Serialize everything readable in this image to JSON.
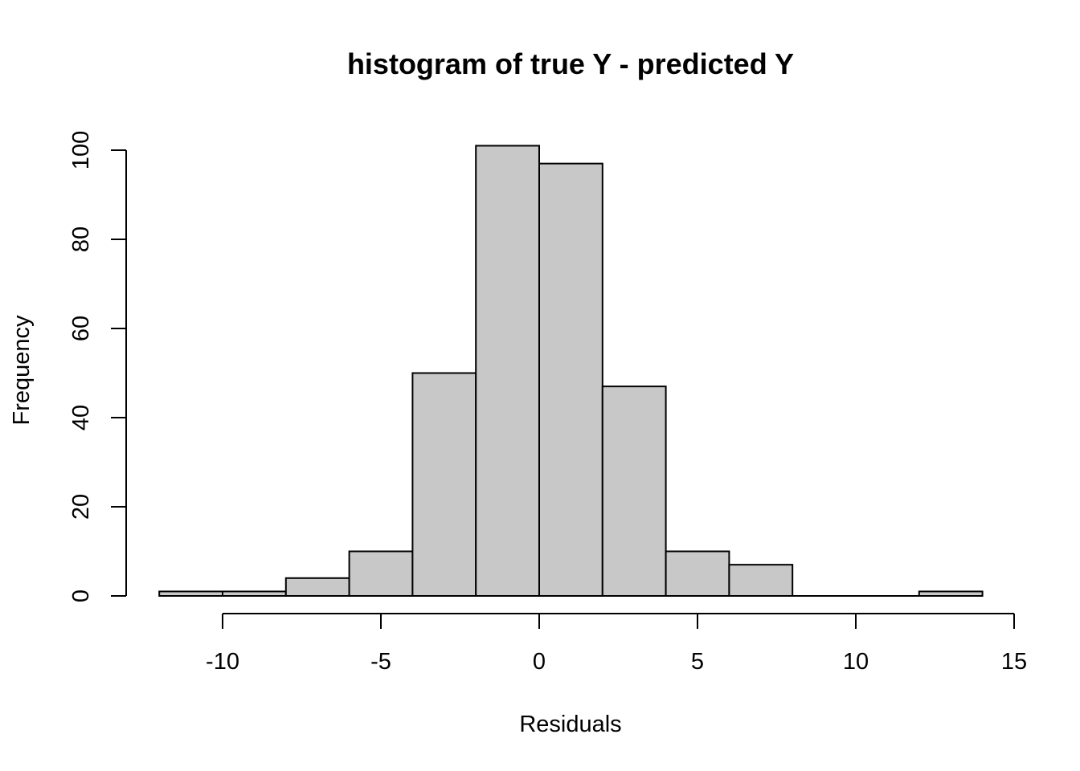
{
  "chart_data": {
    "type": "bar",
    "title": "histogram of true Y - predicted Y",
    "xlabel": "Residuals",
    "ylabel": "Frequency",
    "bin_edges": [
      -12,
      -10,
      -8,
      -6,
      -4,
      -2,
      0,
      2,
      4,
      6,
      8,
      10,
      12,
      14
    ],
    "values": [
      1,
      1,
      4,
      10,
      50,
      101,
      97,
      47,
      10,
      7,
      0,
      0,
      1
    ],
    "xlim": [
      -12,
      14
    ],
    "ylim": [
      0,
      101
    ],
    "x_ticks": [
      -10,
      -5,
      0,
      5,
      10,
      15
    ],
    "y_ticks": [
      0,
      20,
      40,
      60,
      80,
      100
    ],
    "bar_color": "#c8c8c8",
    "grid": false,
    "legend": "none"
  }
}
